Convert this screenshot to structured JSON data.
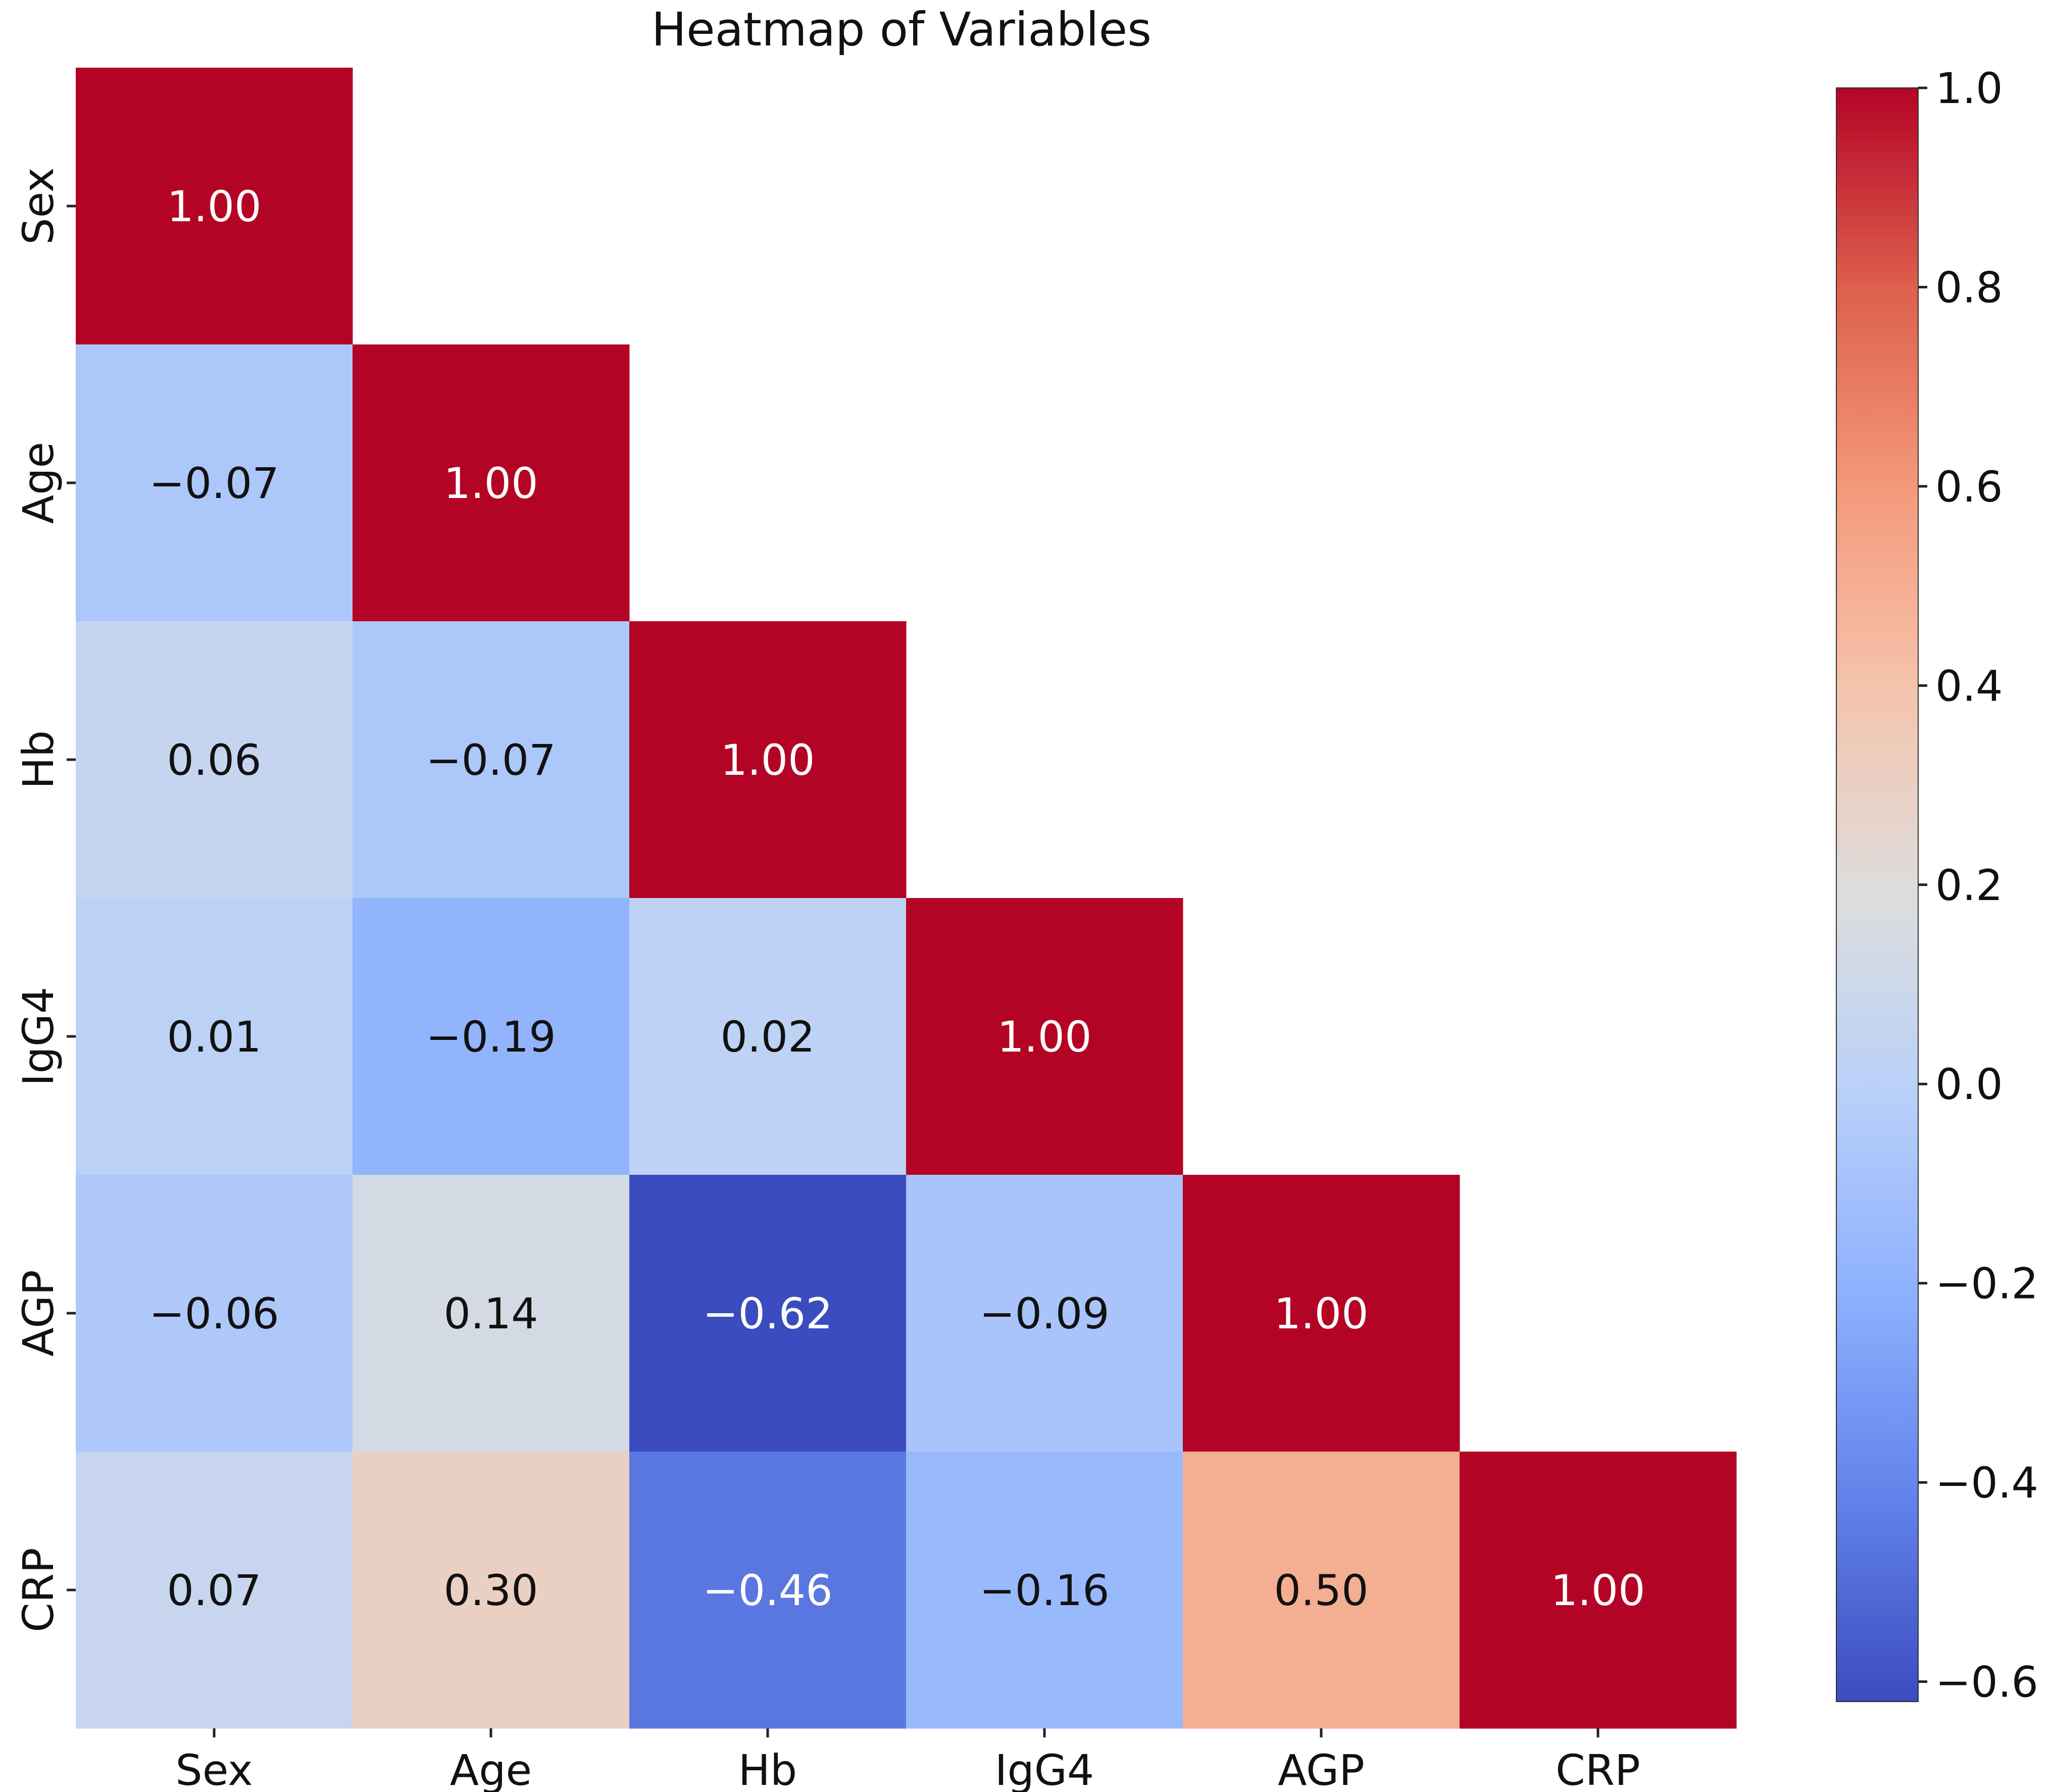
{
  "chart_data": {
    "type": "heatmap",
    "title": "Heatmap of Variables",
    "xlabel": "",
    "ylabel": "",
    "row_labels": [
      "Sex",
      "Age",
      "Hb",
      "IgG4",
      "AGP",
      "CRP"
    ],
    "col_labels": [
      "Sex",
      "Age",
      "Hb",
      "IgG4",
      "AGP",
      "CRP"
    ],
    "mask": "upper-triangle",
    "cells": [
      {
        "row": "Sex",
        "col": "Sex",
        "value": 1.0,
        "label": "1.00"
      },
      {
        "row": "Age",
        "col": "Sex",
        "value": -0.07,
        "label": "−0.07"
      },
      {
        "row": "Age",
        "col": "Age",
        "value": 1.0,
        "label": "1.00"
      },
      {
        "row": "Hb",
        "col": "Sex",
        "value": 0.06,
        "label": "0.06"
      },
      {
        "row": "Hb",
        "col": "Age",
        "value": -0.07,
        "label": "−0.07"
      },
      {
        "row": "Hb",
        "col": "Hb",
        "value": 1.0,
        "label": "1.00"
      },
      {
        "row": "IgG4",
        "col": "Sex",
        "value": 0.01,
        "label": "0.01"
      },
      {
        "row": "IgG4",
        "col": "Age",
        "value": -0.19,
        "label": "−0.19"
      },
      {
        "row": "IgG4",
        "col": "Hb",
        "value": 0.02,
        "label": "0.02"
      },
      {
        "row": "IgG4",
        "col": "IgG4",
        "value": 1.0,
        "label": "1.00"
      },
      {
        "row": "AGP",
        "col": "Sex",
        "value": -0.06,
        "label": "−0.06"
      },
      {
        "row": "AGP",
        "col": "Age",
        "value": 0.14,
        "label": "0.14"
      },
      {
        "row": "AGP",
        "col": "Hb",
        "value": -0.62,
        "label": "−0.62"
      },
      {
        "row": "AGP",
        "col": "IgG4",
        "value": -0.09,
        "label": "−0.09"
      },
      {
        "row": "AGP",
        "col": "AGP",
        "value": 1.0,
        "label": "1.00"
      },
      {
        "row": "CRP",
        "col": "Sex",
        "value": 0.07,
        "label": "0.07"
      },
      {
        "row": "CRP",
        "col": "Age",
        "value": 0.3,
        "label": "0.30"
      },
      {
        "row": "CRP",
        "col": "Hb",
        "value": -0.46,
        "label": "−0.46"
      },
      {
        "row": "CRP",
        "col": "IgG4",
        "value": -0.16,
        "label": "−0.16"
      },
      {
        "row": "CRP",
        "col": "AGP",
        "value": 0.5,
        "label": "0.50"
      },
      {
        "row": "CRP",
        "col": "CRP",
        "value": 1.0,
        "label": "1.00"
      }
    ],
    "colorbar": {
      "colormap": "coolwarm",
      "vmin": -0.62,
      "vmax": 1.0,
      "ticks": [
        1.0,
        0.8,
        0.6,
        0.4,
        0.2,
        0.0,
        -0.2,
        -0.4,
        -0.6
      ],
      "tick_labels": [
        "1.0",
        "0.8",
        "0.6",
        "0.4",
        "0.2",
        "0.0",
        "−0.2",
        "−0.4",
        "−0.6"
      ]
    },
    "grid": false
  }
}
